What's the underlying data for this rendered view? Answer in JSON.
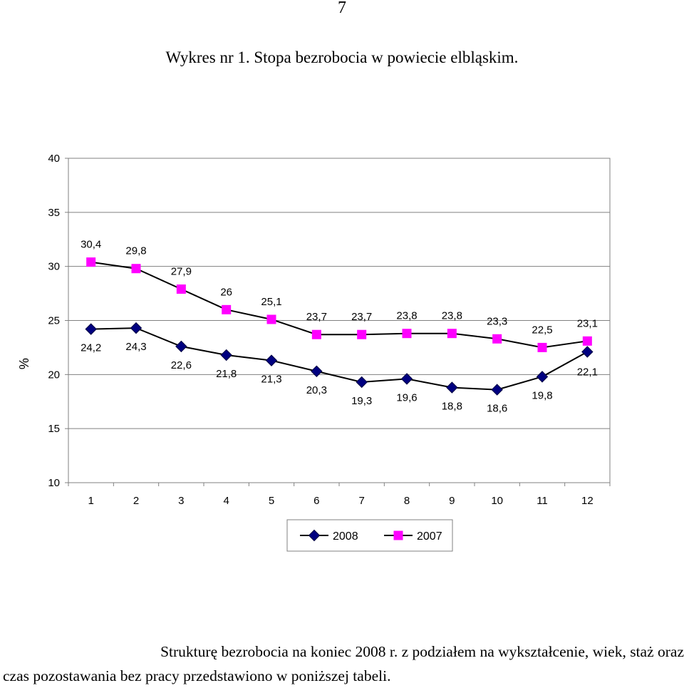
{
  "page_number": "7",
  "chart_title": "Wykres nr 1. Stopa bezrobocia w powiecie elbląskim.",
  "chart_data": {
    "type": "line",
    "ylabel": "%",
    "xlabel": "",
    "ylim": [
      10,
      40
    ],
    "yticks": [
      10,
      15,
      20,
      25,
      30,
      35,
      40
    ],
    "categories": [
      "1",
      "2",
      "3",
      "4",
      "5",
      "6",
      "7",
      "8",
      "9",
      "10",
      "11",
      "12"
    ],
    "grid": "horizontal",
    "legend_position": "bottom",
    "series": [
      {
        "name": "2008",
        "values": [
          24.2,
          24.3,
          22.6,
          21.8,
          21.3,
          20.3,
          19.3,
          19.6,
          18.8,
          18.6,
          19.8,
          22.1
        ],
        "labels": [
          "24,2",
          "24,3",
          "22,6",
          "21,8",
          "21,3",
          "20,3",
          "19,3",
          "19,6",
          "18,8",
          "18,6",
          "19,8",
          "22,1"
        ],
        "color": "#000080",
        "marker": "diamond"
      },
      {
        "name": "2007",
        "values": [
          30.4,
          29.8,
          27.9,
          26,
          25.1,
          23.7,
          23.7,
          23.8,
          23.8,
          23.3,
          22.5,
          23.1
        ],
        "labels": [
          "30,4",
          "29,8",
          "27,9",
          "26",
          "25,1",
          "23,7",
          "23,7",
          "23,8",
          "23,8",
          "23,3",
          "22,5",
          "23,1"
        ],
        "color": "#ff00ff",
        "marker": "square"
      }
    ]
  },
  "paragraph": {
    "line1": "Strukturę bezrobocia na koniec 2008 r. z podziałem na wykształcenie, wiek, staż oraz",
    "line2": "czas pozostawania bez pracy przedstawiono w poniższej tabeli."
  }
}
